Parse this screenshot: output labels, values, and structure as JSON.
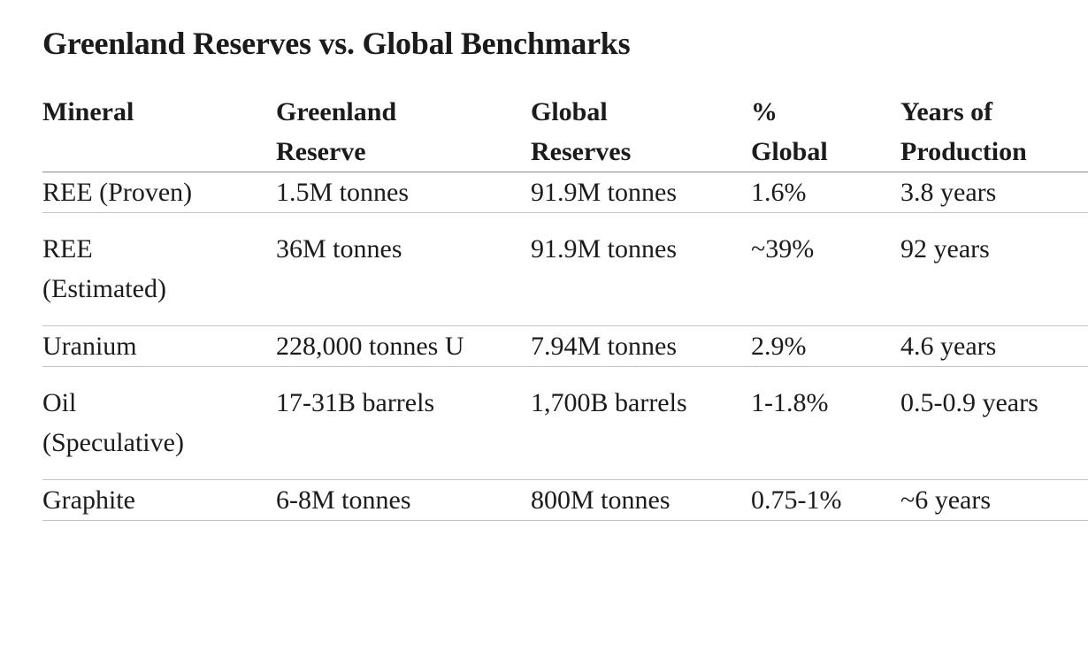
{
  "theme": {
    "background_color": "#ffffff",
    "text_color": "#1b1b1b",
    "header_border_color": "#8a8a8a",
    "row_border_color": "#c3c3c3"
  },
  "title": "Greenland Reserves vs. Global Benchmarks",
  "table": {
    "columns": [
      {
        "key": "mineral",
        "label": "Mineral"
      },
      {
        "key": "greenland-reserve",
        "label": "Greenland\nReserve"
      },
      {
        "key": "global-reserves",
        "label": "Global\nReserves"
      },
      {
        "key": "percent-global",
        "label": "%\nGlobal"
      },
      {
        "key": "years-of-production",
        "label": "Years of\nProduction"
      }
    ],
    "rows": [
      {
        "mineral": "REE (Proven)",
        "greenland_reserve": "1.5M tonnes",
        "global_reserves": "91.9M tonnes",
        "percent_global": "1.6%",
        "years_of_production": "3.8 years"
      },
      {
        "mineral": "REE\n(Estimated)",
        "greenland_reserve": "36M tonnes",
        "global_reserves": "91.9M tonnes",
        "percent_global": "~39%",
        "years_of_production": "92 years"
      },
      {
        "mineral": "Uranium",
        "greenland_reserve": "228,000 tonnes U",
        "global_reserves": "7.94M tonnes",
        "percent_global": "2.9%",
        "years_of_production": "4.6 years"
      },
      {
        "mineral": "Oil\n(Speculative)",
        "greenland_reserve": "17-31B barrels",
        "global_reserves": "1,700B barrels",
        "percent_global": "1-1.8%",
        "years_of_production": "0.5-0.9 years"
      },
      {
        "mineral": "Graphite",
        "greenland_reserve": "6-8M tonnes",
        "global_reserves": "800M tonnes",
        "percent_global": "0.75-1%",
        "years_of_production": "~6 years"
      }
    ]
  }
}
